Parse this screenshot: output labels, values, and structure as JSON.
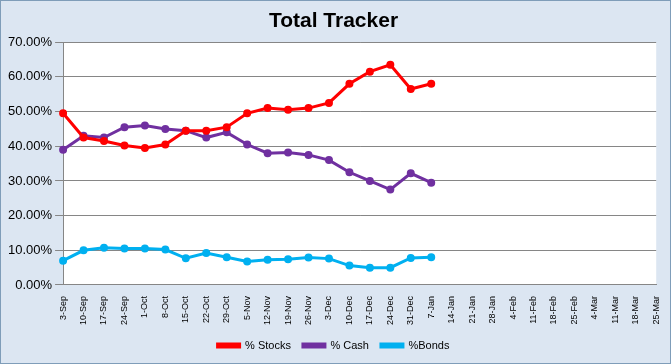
{
  "chart_data": {
    "type": "line",
    "title": "Total Tracker",
    "categories": [
      "3-Sep",
      "10-Sep",
      "17-Sep",
      "24-Sep",
      "1-Oct",
      "8-Oct",
      "15-Oct",
      "22-Oct",
      "29-Oct",
      "5-Nov",
      "12-Nov",
      "19-Nov",
      "26-Nov",
      "3-Dec",
      "10-Dec",
      "17-Dec",
      "24-Dec",
      "31-Dec",
      "7-Jan",
      "14-Jan",
      "21-Jan",
      "28-Jan",
      "4-Feb",
      "11-Feb",
      "18-Feb",
      "25-Feb",
      "4-Mar",
      "11-Mar",
      "18-Mar",
      "25-Mar"
    ],
    "series": [
      {
        "name": "% Stocks",
        "color": "#ff0000",
        "marker": "circle",
        "values": [
          49.5,
          42.5,
          41.5,
          40.2,
          39.5,
          40.5,
          44.5,
          44.5,
          45.5,
          49.5,
          51,
          50.5,
          51,
          52.5,
          58,
          61.5,
          63.5,
          56.5,
          58,
          null,
          null,
          null,
          null,
          null,
          null,
          null,
          null,
          null,
          null,
          null
        ]
      },
      {
        "name": "% Cash",
        "color": "#7030a0",
        "marker": "circle",
        "values": [
          39,
          43,
          42.5,
          45.5,
          46,
          45,
          44.5,
          42.5,
          44,
          40.5,
          38,
          38.2,
          37.5,
          36,
          32.5,
          30,
          27.5,
          32.2,
          29.5,
          null,
          null,
          null,
          null,
          null,
          null,
          null,
          null,
          null,
          null,
          null
        ]
      },
      {
        "name": "%Bonds",
        "color": "#00b0f0",
        "marker": "circle",
        "values": [
          7,
          10,
          10.7,
          10.5,
          10.5,
          10.2,
          7.7,
          9.2,
          8,
          6.8,
          7.3,
          7.4,
          7.9,
          7.6,
          5.6,
          5,
          5,
          7.8,
          8,
          null,
          null,
          null,
          null,
          null,
          null,
          null,
          null,
          null,
          null,
          null
        ]
      }
    ],
    "ylim": [
      0,
      70
    ],
    "yticks": [
      {
        "value": 0,
        "label": "0.00%"
      },
      {
        "value": 10,
        "label": "10.00%"
      },
      {
        "value": 20,
        "label": "20.00%"
      },
      {
        "value": 30,
        "label": "30.00%"
      },
      {
        "value": 40,
        "label": "40.00%"
      },
      {
        "value": 50,
        "label": "50.00%"
      },
      {
        "value": 60,
        "label": "60.00%"
      },
      {
        "value": 70,
        "label": "70.00%"
      }
    ],
    "grid": true,
    "legend": "bottom"
  }
}
